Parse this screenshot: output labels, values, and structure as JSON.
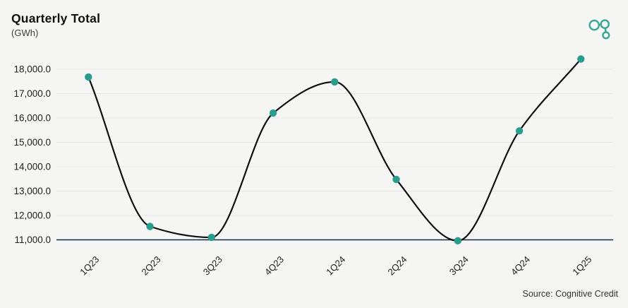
{
  "header": {
    "title": "Quarterly Total",
    "subtitle": "(GWh)"
  },
  "logo": {
    "name": "cognitive-credit-logo",
    "color": "#38a795"
  },
  "source": "Source: Cognitive Credit",
  "chart_data": {
    "type": "line",
    "title": "Quarterly Total",
    "ylabel": "GWh",
    "xlabel": "",
    "categories": [
      "1Q23",
      "2Q23",
      "3Q23",
      "4Q23",
      "1Q24",
      "2Q24",
      "3Q24",
      "4Q24",
      "1Q25"
    ],
    "values": [
      17680,
      11550,
      11100,
      16200,
      17480,
      13480,
      10960,
      15470,
      18420
    ],
    "ylim": [
      11000,
      18000
    ],
    "ytick_step": 1000,
    "ytick_labels": [
      "11,000.0",
      "12,000.0",
      "13,000.0",
      "14,000.0",
      "15,000.0",
      "16,000.0",
      "17,000.0",
      "18,000.0"
    ],
    "grid": "horizontal-only",
    "legend": "none",
    "curve": "smooth-monotone",
    "colors": {
      "point": "#2a9d8f",
      "line": "#101010",
      "axis": "#0f2b43",
      "grid": "#e7e7e4",
      "text": "#1e1e1e",
      "background": "#f5f5f3"
    }
  }
}
